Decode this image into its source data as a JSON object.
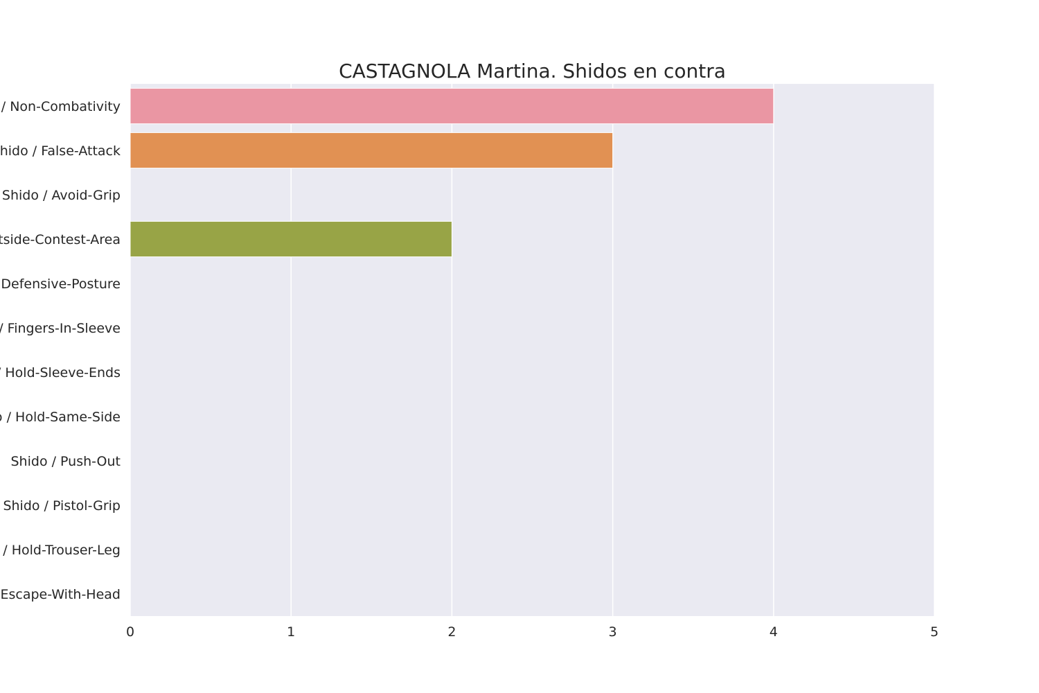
{
  "chart_data": {
    "type": "bar",
    "orientation": "horizontal",
    "title": "CASTAGNOLA Martina. Shidos en contra",
    "xlabel": "",
    "ylabel": "",
    "categories": [
      "Shido / Non-Combativity",
      "Shido / False-Attack",
      "Shido / Avoid-Grip",
      "Shido / Outside-Contest-Area",
      "Shido / Defensive-Posture",
      "Shido / Fingers-In-Sleeve",
      "Shido / Hold-Sleeve-Ends",
      "Shido / Hold-Same-Side",
      "Shido / Push-Out",
      "Shido / Pistol-Grip",
      "Shido / Hold-Trouser-Leg",
      "Shido / Escape-With-Head"
    ],
    "values": [
      4,
      3,
      0,
      2,
      0,
      0,
      0,
      0,
      0,
      0,
      0,
      0
    ],
    "colors": [
      "#ea96a3",
      "#e19153",
      "#b0a04f",
      "#98a446",
      "#6ea44a",
      "#4eaa78",
      "#4ca89a",
      "#4fa5b3",
      "#55a3c8",
      "#8e9fdb",
      "#c48fe4",
      "#e58ec8"
    ],
    "xlim": [
      0,
      5
    ],
    "xticks": [
      "0",
      "1",
      "2",
      "3",
      "4",
      "5"
    ],
    "grid": true,
    "background": "#eaeaf2",
    "grid_color": "#ffffff",
    "legend": "none"
  }
}
